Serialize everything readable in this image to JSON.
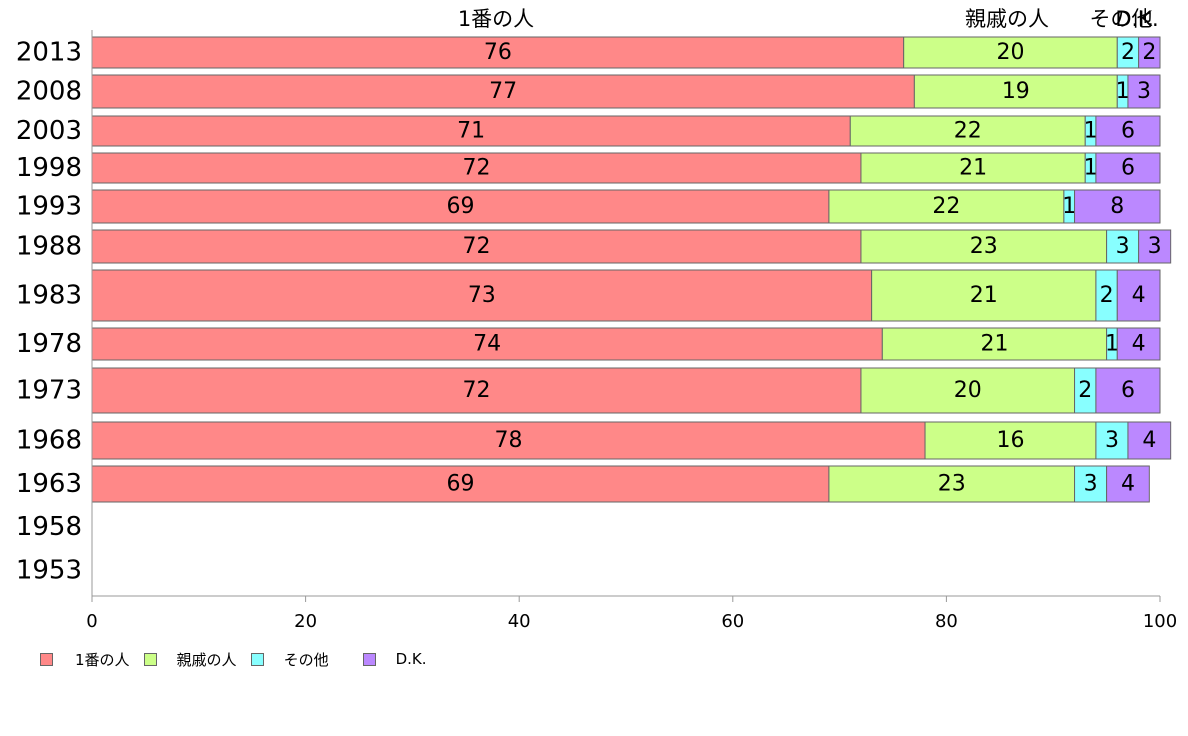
{
  "colors": {
    "series": [
      "#ff8888",
      "#ccff88",
      "#88ffff",
      "#bb88ff"
    ],
    "axis": "#999999",
    "bar_border": "#666666",
    "text": "#000000"
  },
  "chart_data": {
    "type": "bar",
    "orientation": "horizontal",
    "stacked": true,
    "categories": [
      "2013",
      "2008",
      "2003",
      "1998",
      "1993",
      "1988",
      "1983",
      "1978",
      "1973",
      "1968",
      "1963",
      "1958",
      "1953"
    ],
    "series": [
      {
        "name": "1番の人",
        "values": [
          76,
          77,
          71,
          72,
          69,
          72,
          73,
          74,
          72,
          78,
          69,
          null,
          null
        ]
      },
      {
        "name": "親戚の人",
        "values": [
          20,
          19,
          22,
          21,
          22,
          23,
          21,
          21,
          20,
          16,
          23,
          null,
          null
        ]
      },
      {
        "name": "その他",
        "values": [
          2,
          1,
          1,
          1,
          1,
          3,
          2,
          1,
          2,
          3,
          3,
          null,
          null
        ]
      },
      {
        "name": "D.K.",
        "values": [
          2,
          3,
          6,
          6,
          8,
          3,
          4,
          4,
          6,
          4,
          4,
          null,
          null
        ]
      }
    ],
    "top_labels": [
      "1番の人",
      "親戚の人",
      "その他",
      "D.K."
    ],
    "xlim": [
      0,
      100
    ],
    "xticks": [
      "0",
      "20",
      "40",
      "60",
      "80",
      "100"
    ],
    "legend_position": "bottom-left",
    "grid": false
  }
}
